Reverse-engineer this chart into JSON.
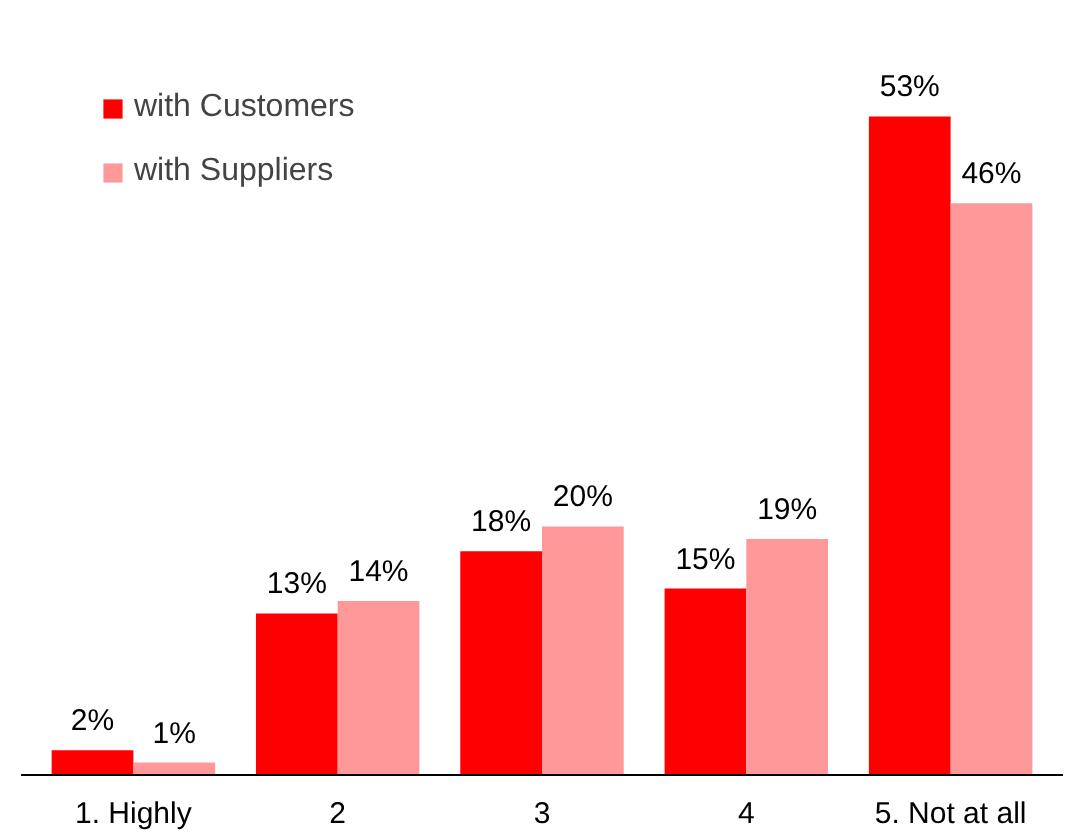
{
  "chart_data": {
    "type": "bar",
    "categories": [
      "1. Highly",
      "2",
      "3",
      "4",
      "5. Not at all"
    ],
    "series": [
      {
        "name": "with Customers",
        "color": "#ff0000",
        "values": [
          2,
          13,
          18,
          15,
          53
        ],
        "value_labels": [
          "2%",
          "13%",
          "18%",
          "15%",
          "53%"
        ]
      },
      {
        "name": "with Suppliers",
        "color": "#ff9999",
        "values": [
          1,
          14,
          20,
          19,
          46
        ],
        "value_labels": [
          "1%",
          "14%",
          "20%",
          "19%",
          "46%"
        ]
      }
    ],
    "legend": "top left",
    "grid": false
  }
}
